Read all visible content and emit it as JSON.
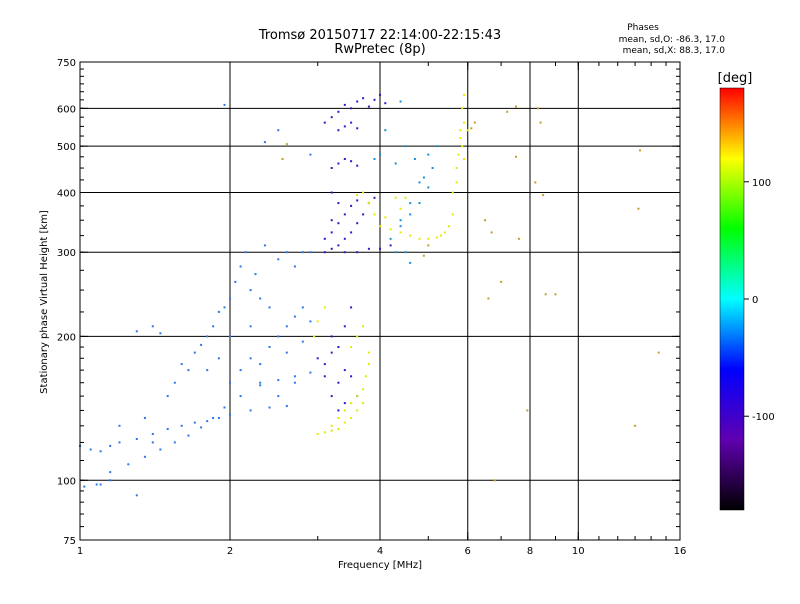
{
  "chart_data": {
    "type": "scatter",
    "title": "Tromsø 20150717 22:14:00-22:15:43",
    "subtitle": "RwPretec (8p)",
    "xlabel": "Frequency [MHz]",
    "ylabel": "Stationary phase Virtual Height [km]",
    "x_scale": "log",
    "y_scale": "log",
    "xlim": [
      1,
      16
    ],
    "ylim": [
      75,
      750
    ],
    "x_ticks": [
      1,
      2,
      4,
      6,
      8,
      10,
      16
    ],
    "y_ticks": [
      75,
      100,
      200,
      300,
      400,
      500,
      600,
      750
    ],
    "x_grid": [
      2,
      4,
      6,
      8,
      10
    ],
    "y_grid": [
      100,
      200,
      300,
      400,
      500,
      600
    ],
    "grid": true,
    "phase_header": "Phases",
    "phase_o": "mean, sd,O: -86.3, 17.0",
    "phase_x": "mean, sd,X:  88.3, 17.0",
    "colorbar": {
      "label": "[deg]",
      "ticks": [
        100,
        0,
        -100
      ],
      "range": [
        -180,
        180
      ],
      "colors": [
        "#ff0000",
        "#ffff00",
        "#00ff00",
        "#00ffff",
        "#0000ff",
        "#6000b0",
        "#000000"
      ]
    },
    "series": [
      {
        "points": [
          [
            1.0,
            118
          ],
          [
            1.05,
            116
          ],
          [
            1.1,
            115
          ],
          [
            1.15,
            118
          ],
          [
            1.2,
            120
          ],
          [
            1.3,
            122
          ],
          [
            1.4,
            125
          ],
          [
            1.5,
            128
          ],
          [
            1.6,
            130
          ],
          [
            1.7,
            132
          ],
          [
            1.8,
            133
          ],
          [
            1.9,
            135
          ],
          [
            2.0,
            137
          ],
          [
            2.2,
            140
          ],
          [
            2.4,
            142
          ],
          [
            2.6,
            143
          ],
          [
            1.02,
            97
          ],
          [
            1.08,
            98
          ],
          [
            1.15,
            104
          ],
          [
            1.25,
            108
          ],
          [
            1.35,
            112
          ],
          [
            1.45,
            116
          ],
          [
            1.55,
            120
          ],
          [
            1.65,
            124
          ],
          [
            1.75,
            129
          ],
          [
            1.85,
            135
          ],
          [
            1.95,
            142
          ],
          [
            2.1,
            150
          ],
          [
            2.3,
            158
          ],
          [
            2.5,
            162
          ],
          [
            2.7,
            165
          ],
          [
            2.9,
            168
          ],
          [
            1.3,
            205
          ],
          [
            1.4,
            210
          ],
          [
            1.45,
            203
          ],
          [
            1.5,
            150
          ],
          [
            1.55,
            160
          ],
          [
            1.6,
            175
          ],
          [
            1.65,
            170
          ],
          [
            1.7,
            185
          ],
          [
            1.75,
            192
          ],
          [
            1.8,
            200
          ],
          [
            1.85,
            210
          ],
          [
            1.9,
            225
          ],
          [
            1.95,
            230
          ],
          [
            2.0,
            240
          ],
          [
            2.05,
            260
          ],
          [
            2.1,
            280
          ],
          [
            2.15,
            300
          ],
          [
            2.2,
            250
          ],
          [
            2.25,
            270
          ],
          [
            2.3,
            240
          ],
          [
            2.35,
            310
          ],
          [
            2.4,
            230
          ],
          [
            2.5,
            290
          ],
          [
            2.6,
            300
          ],
          [
            2.7,
            280
          ],
          [
            2.8,
            300
          ],
          [
            2.9,
            300
          ],
          [
            2.5,
            200
          ],
          [
            2.6,
            210
          ],
          [
            2.7,
            220
          ],
          [
            2.8,
            230
          ],
          [
            2.9,
            215
          ],
          [
            2.2,
            180
          ],
          [
            2.3,
            175
          ],
          [
            2.4,
            190
          ],
          [
            2.6,
            185
          ],
          [
            2.8,
            195
          ],
          [
            2.3,
            160
          ],
          [
            2.5,
            150
          ],
          [
            2.7,
            160
          ],
          [
            2.0,
            160
          ],
          [
            2.1,
            170
          ],
          [
            2.0,
            200
          ],
          [
            2.2,
            210
          ],
          [
            1.8,
            170
          ],
          [
            1.9,
            180
          ],
          [
            1.95,
            610
          ],
          [
            2.35,
            510
          ],
          [
            2.5,
            540
          ],
          [
            2.9,
            480
          ],
          [
            1.4,
            120
          ],
          [
            1.35,
            135
          ],
          [
            1.2,
            130
          ],
          [
            1.3,
            93
          ],
          [
            1.15,
            100
          ],
          [
            1.1,
            98
          ]
        ]
      },
      {
        "points": [
          [
            3.1,
            300
          ],
          [
            3.2,
            305
          ],
          [
            3.3,
            310
          ],
          [
            3.4,
            320
          ],
          [
            3.5,
            330
          ],
          [
            3.6,
            345
          ],
          [
            3.7,
            360
          ],
          [
            3.8,
            380
          ],
          [
            3.9,
            390
          ],
          [
            3.2,
            330
          ],
          [
            3.3,
            345
          ],
          [
            3.4,
            360
          ],
          [
            3.5,
            375
          ],
          [
            3.6,
            385
          ],
          [
            3.1,
            320
          ],
          [
            3.2,
            350
          ],
          [
            3.3,
            380
          ],
          [
            3.2,
            400
          ],
          [
            3.4,
            300
          ],
          [
            3.6,
            300
          ],
          [
            3.8,
            305
          ],
          [
            4.0,
            305
          ],
          [
            4.2,
            310
          ],
          [
            3.1,
            560
          ],
          [
            3.2,
            575
          ],
          [
            3.3,
            590
          ],
          [
            3.4,
            610
          ],
          [
            3.5,
            600
          ],
          [
            3.6,
            620
          ],
          [
            3.7,
            630
          ],
          [
            3.8,
            605
          ],
          [
            3.9,
            625
          ],
          [
            4.0,
            640
          ],
          [
            4.1,
            615
          ],
          [
            3.3,
            540
          ],
          [
            3.4,
            550
          ],
          [
            3.5,
            560
          ],
          [
            3.6,
            545
          ],
          [
            3.2,
            450
          ],
          [
            3.3,
            460
          ],
          [
            3.4,
            470
          ],
          [
            3.5,
            465
          ],
          [
            3.6,
            455
          ],
          [
            3.0,
            180
          ],
          [
            3.1,
            175
          ],
          [
            3.2,
            185
          ],
          [
            3.3,
            190
          ],
          [
            3.4,
            170
          ],
          [
            3.5,
            165
          ],
          [
            3.2,
            150
          ],
          [
            3.3,
            160
          ],
          [
            3.4,
            210
          ],
          [
            3.5,
            230
          ],
          [
            3.3,
            140
          ],
          [
            3.4,
            145
          ],
          [
            3.6,
            150
          ],
          [
            3.2,
            200
          ],
          [
            3.1,
            165
          ]
        ]
      },
      {
        "points": [
          [
            4.2,
            320
          ],
          [
            4.4,
            340
          ],
          [
            4.6,
            360
          ],
          [
            4.8,
            380
          ],
          [
            5.0,
            410
          ],
          [
            5.1,
            450
          ],
          [
            5.2,
            500
          ],
          [
            4.5,
            500
          ],
          [
            4.7,
            470
          ],
          [
            4.9,
            430
          ],
          [
            4.3,
            300
          ],
          [
            4.5,
            300
          ],
          [
            4.6,
            285
          ],
          [
            4.4,
            350
          ],
          [
            4.6,
            380
          ],
          [
            4.8,
            420
          ],
          [
            5.0,
            480
          ],
          [
            4.3,
            460
          ],
          [
            4.1,
            540
          ],
          [
            4.4,
            620
          ],
          [
            4.0,
            480
          ],
          [
            3.9,
            470
          ]
        ]
      },
      {
        "points": [
          [
            5.6,
            360
          ],
          [
            5.7,
            420
          ],
          [
            5.75,
            480
          ],
          [
            5.8,
            540
          ],
          [
            5.85,
            600
          ],
          [
            5.9,
            640
          ],
          [
            5.8,
            520
          ],
          [
            5.7,
            450
          ],
          [
            5.6,
            400
          ],
          [
            5.5,
            340
          ],
          [
            5.4,
            330
          ],
          [
            5.3,
            325
          ],
          [
            5.2,
            322
          ],
          [
            5.0,
            320
          ],
          [
            4.8,
            320
          ],
          [
            4.6,
            325
          ],
          [
            4.4,
            330
          ],
          [
            4.2,
            335
          ],
          [
            4.0,
            340
          ],
          [
            3.9,
            360
          ],
          [
            3.8,
            380
          ],
          [
            3.7,
            400
          ],
          [
            3.6,
            395
          ],
          [
            4.1,
            355
          ],
          [
            4.3,
            390
          ],
          [
            4.5,
            390
          ],
          [
            4.4,
            370
          ],
          [
            5.9,
            560
          ],
          [
            5.85,
            500
          ],
          [
            5.9,
            470
          ],
          [
            6.0,
            540
          ],
          [
            3.2,
            130
          ],
          [
            3.3,
            135
          ],
          [
            3.4,
            140
          ],
          [
            3.5,
            145
          ],
          [
            3.6,
            150
          ],
          [
            3.7,
            155
          ],
          [
            3.75,
            165
          ],
          [
            3.8,
            175
          ],
          [
            3.7,
            145
          ],
          [
            3.6,
            140
          ],
          [
            3.5,
            135
          ],
          [
            3.4,
            132
          ],
          [
            3.3,
            128
          ],
          [
            3.2,
            127
          ],
          [
            3.1,
            126
          ],
          [
            3.0,
            125
          ],
          [
            2.95,
            200
          ],
          [
            3.0,
            215
          ],
          [
            3.1,
            230
          ],
          [
            3.5,
            190
          ],
          [
            3.6,
            200
          ],
          [
            3.7,
            210
          ],
          [
            3.8,
            185
          ]
        ]
      },
      {
        "points": [
          [
            6.2,
            560
          ],
          [
            6.6,
            240
          ],
          [
            6.8,
            100
          ],
          [
            7.2,
            590
          ],
          [
            7.5,
            605
          ],
          [
            7.5,
            475
          ],
          [
            8.3,
            600
          ],
          [
            8.4,
            560
          ],
          [
            8.5,
            395
          ],
          [
            8.6,
            245
          ],
          [
            9.0,
            245
          ],
          [
            13.2,
            370
          ],
          [
            13.3,
            490
          ],
          [
            13.0,
            130
          ],
          [
            14.5,
            185
          ],
          [
            7.9,
            140
          ],
          [
            6.5,
            350
          ],
          [
            6.7,
            330
          ],
          [
            7.0,
            260
          ],
          [
            5.0,
            310
          ],
          [
            4.9,
            295
          ],
          [
            6.1,
            545
          ],
          [
            7.6,
            320
          ],
          [
            8.2,
            420
          ],
          [
            2.55,
            470
          ],
          [
            2.6,
            505
          ]
        ]
      }
    ]
  }
}
